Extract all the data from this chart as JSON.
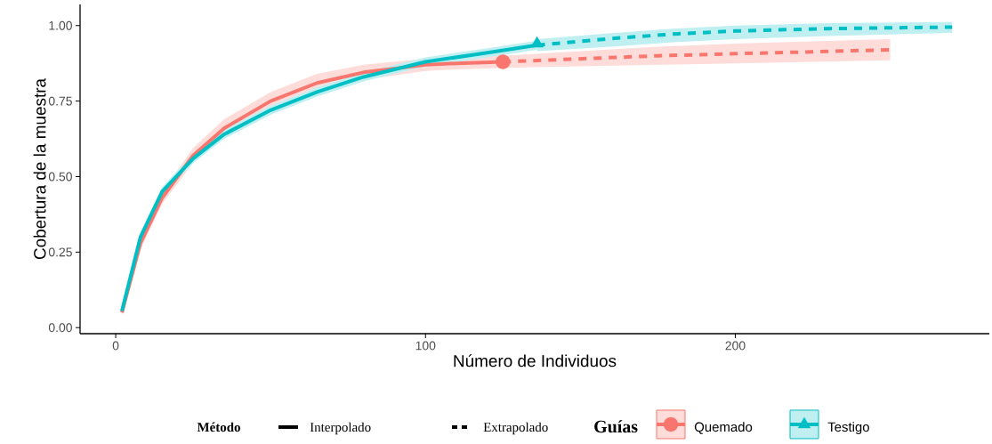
{
  "chart_data": {
    "type": "line",
    "xlabel": "Número de Individuos",
    "ylabel": "Cobertura de la muestra",
    "legend_title": "Guías",
    "legend": "bottom",
    "annotations": [
      "Método",
      "Interpolado",
      "Extrapolado"
    ],
    "xlim": [
      -11.5,
      282
    ],
    "ylim": [
      -0.02,
      1.07
    ],
    "xticks": [
      0,
      100,
      200
    ],
    "yticks": [
      {
        "value": 0,
        "label": "0.00"
      },
      {
        "value": 0.25,
        "label": "0.25"
      },
      {
        "value": 0.5,
        "label": "0.50"
      },
      {
        "value": 0.75,
        "label": "0.75"
      },
      {
        "value": 1,
        "label": "1.00"
      }
    ],
    "series": [
      {
        "name": "Quemado",
        "color": "#f8766d",
        "line_style": "solid",
        "x": [
          2,
          8,
          15,
          25,
          35,
          50,
          65,
          80,
          100,
          110,
          125
        ],
        "values": [
          0.05,
          0.28,
          0.43,
          0.57,
          0.66,
          0.75,
          0.81,
          0.845,
          0.87,
          0.875,
          0.88
        ],
        "lower": [
          0.04,
          0.26,
          0.41,
          0.545,
          0.63,
          0.72,
          0.78,
          0.82,
          0.85,
          0.855,
          0.86
        ],
        "upper": [
          0.06,
          0.3,
          0.45,
          0.595,
          0.69,
          0.78,
          0.84,
          0.87,
          0.89,
          0.895,
          0.9
        ]
      },
      {
        "color": "#f8766d",
        "line_style": "dashed",
        "x": [
          125,
          150,
          175,
          200,
          225,
          250
        ],
        "values": [
          0.88,
          0.89,
          0.9,
          0.907,
          0.913,
          0.92
        ],
        "lower": [
          0.86,
          0.865,
          0.87,
          0.875,
          0.88,
          0.885
        ],
        "upper": [
          0.9,
          0.915,
          0.93,
          0.94,
          0.948,
          0.955
        ]
      },
      {
        "type": "scatter",
        "marker": "circle",
        "color": "#f8766d",
        "x": [
          125
        ],
        "values": [
          0.88
        ]
      },
      {
        "name": "Testigo",
        "color": "#00bfc4",
        "line_style": "solid",
        "x": [
          2,
          8,
          15,
          25,
          35,
          50,
          65,
          80,
          100,
          120,
          136
        ],
        "values": [
          0.055,
          0.3,
          0.45,
          0.56,
          0.64,
          0.72,
          0.78,
          0.83,
          0.88,
          0.91,
          0.935
        ],
        "lower": [
          0.045,
          0.285,
          0.435,
          0.545,
          0.625,
          0.705,
          0.765,
          0.815,
          0.865,
          0.895,
          0.92
        ],
        "upper": [
          0.065,
          0.315,
          0.465,
          0.575,
          0.655,
          0.735,
          0.795,
          0.845,
          0.895,
          0.925,
          0.95
        ]
      },
      {
        "color": "#00bfc4",
        "line_style": "dashed",
        "x": [
          136,
          160,
          180,
          200,
          230,
          270
        ],
        "values": [
          0.935,
          0.957,
          0.972,
          0.982,
          0.99,
          0.995
        ],
        "lower": [
          0.915,
          0.93,
          0.945,
          0.955,
          0.965,
          0.976
        ],
        "upper": [
          0.955,
          0.975,
          0.99,
          1.0,
          1.008,
          1.012
        ]
      },
      {
        "type": "scatter",
        "marker": "triangle",
        "color": "#00bfc4",
        "x": [
          136
        ],
        "values": [
          0.94
        ]
      }
    ]
  }
}
